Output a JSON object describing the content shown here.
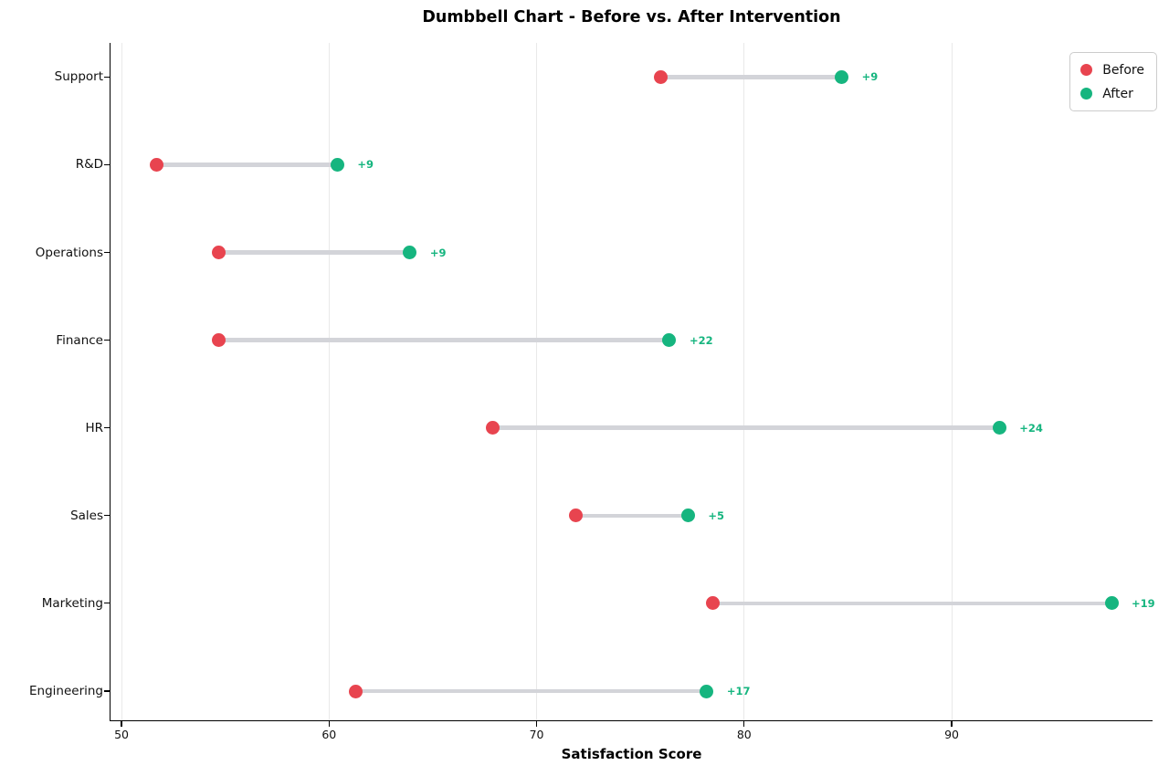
{
  "title": "Dumbbell Chart - Before vs. After Intervention",
  "chart_data": {
    "type": "dumbbell",
    "orientation": "horizontal",
    "title": "Dumbbell Chart - Before vs. After Intervention",
    "xlabel": "Satisfaction Score",
    "ylabel": "",
    "categories": [
      "Support",
      "R&D",
      "Operations",
      "Finance",
      "HR",
      "Sales",
      "Marketing",
      "Engineering"
    ],
    "series": [
      {
        "name": "Before",
        "color": "#e8444f",
        "values": [
          76.0,
          51.7,
          54.7,
          54.7,
          67.9,
          71.9,
          78.5,
          61.3
        ]
      },
      {
        "name": "After",
        "color": "#16b57f",
        "values": [
          84.7,
          60.4,
          63.9,
          76.4,
          92.3,
          77.3,
          97.7,
          78.2
        ]
      }
    ],
    "delta_labels": [
      "+9",
      "+9",
      "+9",
      "+22",
      "+24",
      "+5",
      "+19",
      "+17"
    ],
    "delta_color": "#16b57f",
    "connector_color": "#d3d4d9",
    "x_ticks": [
      50,
      60,
      70,
      80,
      90
    ],
    "xlim": [
      49.47,
      99.68
    ],
    "grid": "vertical-light",
    "gridline_color": "#e9e9e9",
    "legend": {
      "position": "upper-right",
      "entries": [
        {
          "label": "Before",
          "color": "#e8444f"
        },
        {
          "label": "After",
          "color": "#16b57f"
        }
      ]
    }
  }
}
